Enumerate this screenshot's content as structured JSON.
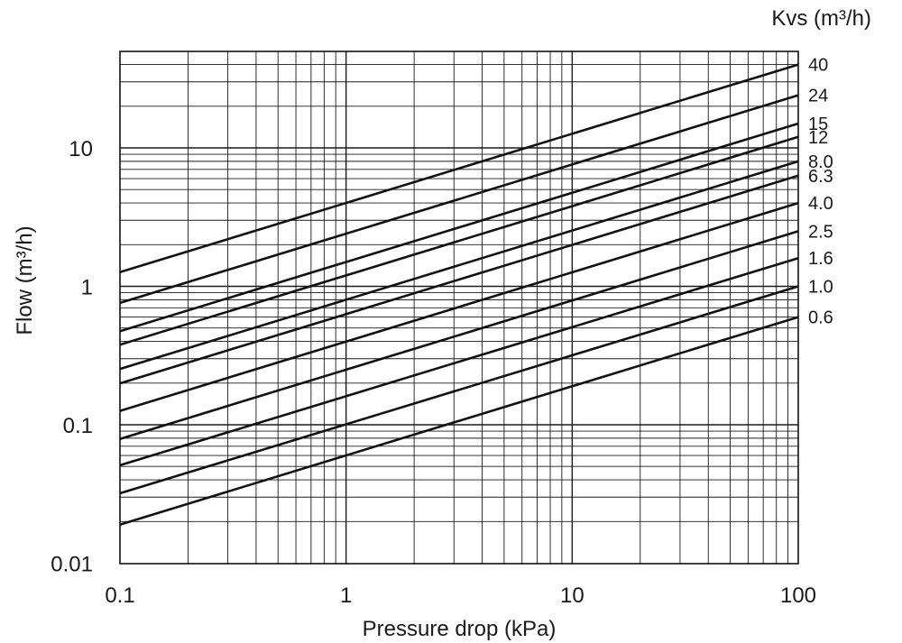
{
  "chart_data": {
    "type": "line",
    "title": "",
    "xlabel": "Pressure drop (kPa)",
    "ylabel": "Flow  (m³/h)",
    "x_scale": "log",
    "y_scale": "log",
    "xlim": [
      0.1,
      100
    ],
    "ylim": [
      0.01,
      40
    ],
    "grid": true,
    "x_ticks": [
      "0.1",
      "1",
      "10",
      "100"
    ],
    "y_ticks": [
      "0.01",
      "0.1",
      "1",
      "10"
    ],
    "legend_title": "Kvs (m³/h)",
    "legend_position": "right",
    "series": [
      {
        "name": "40",
        "kvs": 40,
        "x": [
          0.1,
          100
        ],
        "y": [
          1.265,
          40
        ]
      },
      {
        "name": "24",
        "kvs": 24,
        "x": [
          0.1,
          100
        ],
        "y": [
          0.759,
          24
        ]
      },
      {
        "name": "15",
        "kvs": 15,
        "x": [
          0.1,
          100
        ],
        "y": [
          0.474,
          15
        ]
      },
      {
        "name": "12",
        "kvs": 12,
        "x": [
          0.1,
          100
        ],
        "y": [
          0.379,
          12
        ]
      },
      {
        "name": "8.0",
        "kvs": 8.0,
        "x": [
          0.1,
          100
        ],
        "y": [
          0.253,
          8.0
        ]
      },
      {
        "name": "6.3",
        "kvs": 6.3,
        "x": [
          0.1,
          100
        ],
        "y": [
          0.199,
          6.3
        ]
      },
      {
        "name": "4.0",
        "kvs": 4.0,
        "x": [
          0.1,
          100
        ],
        "y": [
          0.126,
          4.0
        ]
      },
      {
        "name": "2.5",
        "kvs": 2.5,
        "x": [
          0.1,
          100
        ],
        "y": [
          0.079,
          2.5
        ]
      },
      {
        "name": "1.6",
        "kvs": 1.6,
        "x": [
          0.1,
          100
        ],
        "y": [
          0.051,
          1.6
        ]
      },
      {
        "name": "1.0",
        "kvs": 1.0,
        "x": [
          0.1,
          100
        ],
        "y": [
          0.032,
          1.0
        ]
      },
      {
        "name": "0.6",
        "kvs": 0.6,
        "x": [
          0.1,
          100
        ],
        "y": [
          0.019,
          0.6
        ]
      }
    ]
  }
}
